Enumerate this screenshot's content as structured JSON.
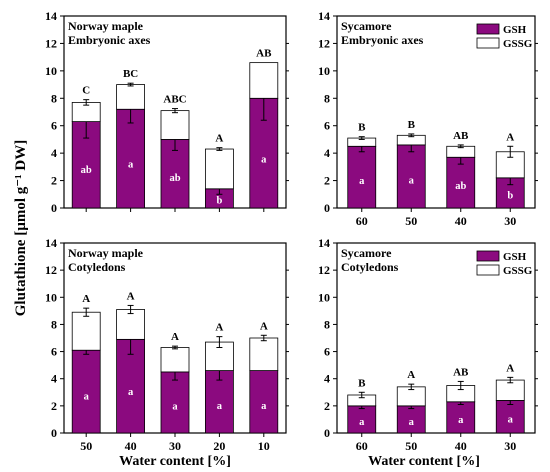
{
  "figure": {
    "ylabel": "Glutathione [µmol g⁻¹ DW]",
    "xlabel_left": "Water content [%]",
    "xlabel_right": "Water content [%]",
    "legend": [
      "GSH",
      "GSSG"
    ],
    "colors": {
      "gsh": "#8B0A7F",
      "gssg": "#FFFFFF",
      "axis": "#000000"
    }
  },
  "chart_data": [
    {
      "type": "bar",
      "stacked": true,
      "title": [
        "Norway maple",
        "Embryonic axes"
      ],
      "categories": [
        "50",
        "40",
        "30",
        "20",
        "10"
      ],
      "show_categories": false,
      "ylim": [
        0,
        14
      ],
      "yticks": [
        0,
        2,
        4,
        6,
        8,
        10,
        12,
        14
      ],
      "show_legend": false,
      "series": [
        {
          "name": "GSH",
          "values": [
            6.3,
            7.2,
            5.0,
            1.4,
            8.0
          ],
          "errors": [
            1.2,
            1.0,
            0.8,
            0.4,
            1.6
          ],
          "labels": [
            "ab",
            "a",
            "ab",
            "b",
            "a"
          ]
        },
        {
          "name": "GSSG",
          "values": [
            1.4,
            1.8,
            2.1,
            2.9,
            2.6
          ],
          "errors": [
            0.2,
            0.1,
            0.15,
            0.1,
            0.0
          ]
        }
      ],
      "group_labels": [
        "C",
        "BC",
        "ABC",
        "A",
        "AB"
      ]
    },
    {
      "type": "bar",
      "stacked": true,
      "title": [
        "Sycamore",
        "Embryonic axes"
      ],
      "categories": [
        "60",
        "50",
        "40",
        "30"
      ],
      "show_categories": true,
      "ylim": [
        0,
        14
      ],
      "yticks": [
        0,
        2,
        4,
        6,
        8,
        10,
        12,
        14
      ],
      "show_legend": true,
      "series": [
        {
          "name": "GSH",
          "values": [
            4.5,
            4.6,
            3.7,
            2.2
          ],
          "errors": [
            0.4,
            0.5,
            0.5,
            0.5
          ],
          "labels": [
            "a",
            "a",
            "ab",
            "b"
          ]
        },
        {
          "name": "GSSG",
          "values": [
            0.6,
            0.7,
            0.8,
            1.9
          ],
          "errors": [
            0.1,
            0.1,
            0.1,
            0.4
          ]
        }
      ],
      "group_labels": [
        "B",
        "B",
        "AB",
        "A"
      ]
    },
    {
      "type": "bar",
      "stacked": true,
      "title": [
        "Norway maple",
        "Cotyledons"
      ],
      "categories": [
        "50",
        "40",
        "30",
        "20",
        "10"
      ],
      "show_categories": true,
      "ylim": [
        0,
        14
      ],
      "yticks": [
        0,
        2,
        4,
        6,
        8,
        10,
        12,
        14
      ],
      "show_legend": false,
      "series": [
        {
          "name": "GSH",
          "values": [
            6.1,
            6.9,
            4.5,
            4.6,
            4.6
          ],
          "errors": [
            0.3,
            1.1,
            0.6,
            0.7,
            0.0
          ],
          "labels": [
            "a",
            "a",
            "a",
            "a",
            "a"
          ]
        },
        {
          "name": "GSSG",
          "values": [
            2.8,
            2.2,
            1.8,
            2.1,
            2.4
          ],
          "errors": [
            0.3,
            0.3,
            0.1,
            0.4,
            0.2
          ]
        }
      ],
      "group_labels": [
        "A",
        "A",
        "A",
        "A",
        "A"
      ]
    },
    {
      "type": "bar",
      "stacked": true,
      "title": [
        "Sycamore",
        "Cotyledons"
      ],
      "categories": [
        "60",
        "50",
        "40",
        "30"
      ],
      "show_categories": true,
      "ylim": [
        0,
        14
      ],
      "yticks": [
        0,
        2,
        4,
        6,
        8,
        10,
        12,
        14
      ],
      "show_legend": true,
      "series": [
        {
          "name": "GSH",
          "values": [
            2.0,
            2.0,
            2.3,
            2.4
          ],
          "errors": [
            0.2,
            0.2,
            0.2,
            0.3
          ],
          "labels": [
            "a",
            "a",
            "a",
            "a"
          ]
        },
        {
          "name": "GSSG",
          "values": [
            0.8,
            1.4,
            1.2,
            1.5
          ],
          "errors": [
            0.2,
            0.2,
            0.3,
            0.2
          ]
        }
      ],
      "group_labels": [
        "B",
        "A",
        "AB",
        "A"
      ]
    }
  ]
}
